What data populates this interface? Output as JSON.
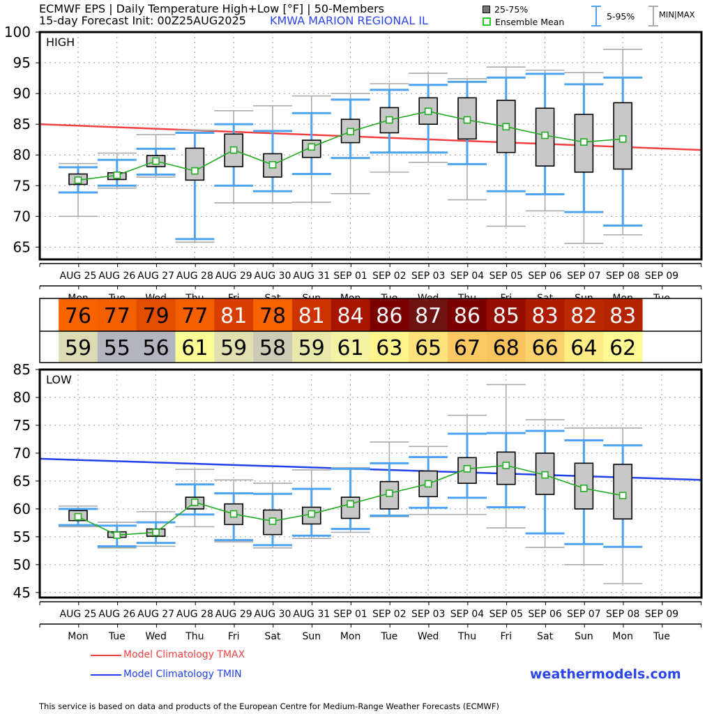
{
  "header": {
    "title_line1": "ECMWF EPS | Daily Temperature High+Low [°F] | 50-Members",
    "title_line2": "15-day Forecast Init: 00Z25AUG2025",
    "station": "KMWA  MARION REGIONAL IL"
  },
  "legend": {
    "box": "25-75%",
    "mean": "Ensemble Mean",
    "p5_95": "5-95%",
    "minmax": "MIN|MAX"
  },
  "colors": {
    "box_fill": "#c8c8c8",
    "p5_95": "#4da3ef",
    "minmax": "#aaaaaa",
    "mean": "#22aa22",
    "clim_tmax": "#f04040",
    "clim_tmin": "#2040e8",
    "brand": "#2b46e6"
  },
  "footer": {
    "clim_tmax_label": "Model Climatology TMAX",
    "clim_tmin_label": "Model Climatology TMIN",
    "brand": "weathermodels.com",
    "disclaimer": "This service is based on data and products of the European Centre for Medium-Range Weather Forecasts (ECMWF)"
  },
  "chart_data": [
    {
      "type": "box",
      "panel": "HIGH",
      "title": "HIGH",
      "ylabel": "°F",
      "ylim": [
        63,
        100
      ],
      "yticks": [
        65,
        70,
        75,
        80,
        85,
        90,
        95,
        100
      ],
      "grid": true,
      "categories": [
        "AUG 25",
        "AUG 26",
        "AUG 27",
        "AUG 28",
        "AUG 29",
        "AUG 30",
        "AUG 31",
        "SEP 01",
        "SEP 02",
        "SEP 03",
        "SEP 04",
        "SEP 05",
        "SEP 06",
        "SEP 07",
        "SEP 08",
        "SEP 09"
      ],
      "weekdays": [
        "Mon",
        "Tue",
        "Wed",
        "Thu",
        "Fri",
        "Sat",
        "Sun",
        "Mon",
        "Tue",
        "Wed",
        "Thu",
        "Fri",
        "Sat",
        "Sun",
        "Mon",
        "Tue"
      ],
      "series": {
        "min": [
          70.0,
          74.6,
          76.4,
          65.8,
          72.2,
          72.2,
          72.3,
          73.7,
          77.2,
          78.8,
          72.7,
          68.4,
          70.9,
          65.6,
          67.0
        ],
        "p5": [
          73.9,
          75.0,
          76.8,
          66.3,
          75.0,
          74.1,
          76.9,
          79.5,
          80.4,
          80.4,
          78.5,
          74.1,
          73.6,
          70.7,
          68.5
        ],
        "q25": [
          75.2,
          76.0,
          78.1,
          75.9,
          78.1,
          76.4,
          79.6,
          82.0,
          83.6,
          85.0,
          82.6,
          80.4,
          78.2,
          77.2,
          77.7
        ],
        "mean": [
          75.9,
          76.7,
          79.0,
          77.4,
          80.8,
          78.4,
          81.3,
          83.8,
          85.7,
          87.1,
          85.7,
          84.6,
          83.2,
          82.1,
          82.6
        ],
        "q75": [
          76.9,
          77.1,
          79.9,
          81.1,
          83.4,
          80.2,
          82.4,
          85.8,
          87.7,
          89.3,
          89.3,
          88.9,
          87.6,
          86.6,
          88.5
        ],
        "p95": [
          78.0,
          79.2,
          81.0,
          83.6,
          85.0,
          83.9,
          86.8,
          89.0,
          90.6,
          91.4,
          91.9,
          92.6,
          93.2,
          91.5,
          92.6
        ],
        "max": [
          78.6,
          80.3,
          83.3,
          84.0,
          87.2,
          88.0,
          89.6,
          90.0,
          91.6,
          93.3,
          92.4,
          94.3,
          93.8,
          93.4,
          97.2
        ]
      },
      "climatology_tmax": {
        "x": [
          0,
          15.5
        ],
        "y": [
          85.0,
          80.8
        ],
        "label": "Model Climatology TMAX"
      }
    },
    {
      "type": "table",
      "panel": "summary",
      "high": {
        "values": [
          76,
          77,
          79,
          77,
          81,
          78,
          81,
          84,
          86,
          87,
          86,
          85,
          83,
          82,
          83
        ],
        "colors": [
          "#fa6400",
          "#f45f00",
          "#e24d00",
          "#f45f00",
          "#d73e00",
          "#fa6400",
          "#cc3300",
          "#a81600",
          "#7d0000",
          "#6e1212",
          "#7d0000",
          "#950c00",
          "#ad1c00",
          "#ba2800",
          "#b52400"
        ],
        "text_colors": [
          "#000",
          "#000",
          "#000",
          "#000",
          "#fff",
          "#000",
          "#fff",
          "#fff",
          "#fff",
          "#fff",
          "#fff",
          "#fff",
          "#fff",
          "#fff",
          "#fff"
        ]
      },
      "low": {
        "values": [
          59,
          55,
          56,
          61,
          59,
          58,
          59,
          61,
          63,
          65,
          67,
          68,
          66,
          64,
          62
        ],
        "colors": [
          "#dcdcb4",
          "#b4b4c0",
          "#b4b4c0",
          "#fcfc96",
          "#e0e0b0",
          "#cccbb6",
          "#e8e8aa",
          "#f3f3a3",
          "#fff58c",
          "#fde17a",
          "#fbc864",
          "#f9c45e",
          "#fcd26c",
          "#fded84",
          "#fffa93"
        ]
      }
    },
    {
      "type": "box",
      "panel": "LOW",
      "title": "LOW",
      "ylabel": "°F",
      "ylim": [
        44,
        85
      ],
      "yticks": [
        45,
        50,
        55,
        60,
        65,
        70,
        75,
        80,
        85
      ],
      "grid": true,
      "categories": [
        "AUG 25",
        "AUG 26",
        "AUG 27",
        "AUG 28",
        "AUG 29",
        "AUG 30",
        "AUG 31",
        "SEP 01",
        "SEP 02",
        "SEP 03",
        "SEP 04",
        "SEP 05",
        "SEP 06",
        "SEP 07",
        "SEP 08",
        "SEP 09"
      ],
      "weekdays": [
        "Mon",
        "Tue",
        "Wed",
        "Thu",
        "Fri",
        "Sat",
        "Sun",
        "Mon",
        "Tue",
        "Wed",
        "Thu",
        "Fri",
        "Sat",
        "Sun",
        "Mon",
        "Tue"
      ],
      "series": {
        "min": [
          56.8,
          53.0,
          53.3,
          56.8,
          54.1,
          53.0,
          54.7,
          55.8,
          58.6,
          59.0,
          59.0,
          56.6,
          53.1,
          50.0,
          46.6
        ],
        "p5": [
          57.1,
          53.3,
          53.9,
          59.0,
          54.4,
          53.5,
          55.2,
          56.4,
          58.8,
          60.2,
          62.0,
          60.3,
          55.6,
          53.7,
          53.2
        ],
        "q25": [
          57.9,
          54.9,
          55.1,
          60.0,
          57.2,
          55.4,
          57.3,
          58.3,
          60.0,
          62.2,
          64.6,
          64.4,
          62.6,
          60.0,
          58.2
        ],
        "mean": [
          58.6,
          55.3,
          55.8,
          61.2,
          59.1,
          57.8,
          59.1,
          60.9,
          62.8,
          64.5,
          67.2,
          67.8,
          66.1,
          63.7,
          62.4
        ],
        "q75": [
          59.7,
          55.9,
          56.4,
          62.1,
          60.9,
          59.8,
          60.3,
          62.1,
          64.9,
          66.8,
          69.2,
          70.2,
          70.0,
          68.2,
          68.0
        ],
        "p95": [
          60.0,
          57.0,
          57.6,
          64.4,
          62.8,
          62.7,
          63.6,
          67.2,
          68.2,
          69.3,
          73.5,
          73.6,
          74.0,
          72.3,
          71.4
        ],
        "max": [
          60.5,
          57.6,
          59.5,
          67.1,
          65.2,
          64.6,
          67.0,
          67.4,
          72.0,
          71.2,
          76.8,
          82.3,
          76.0,
          74.5,
          74.5
        ]
      },
      "climatology_tmin": {
        "x": [
          0,
          15.5
        ],
        "y": [
          69.0,
          65.2
        ],
        "label": "Model Climatology TMIN"
      }
    }
  ]
}
